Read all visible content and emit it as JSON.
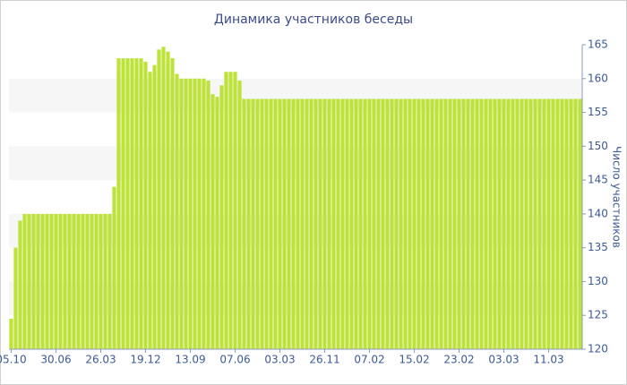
{
  "chart_data": {
    "type": "bar",
    "title": "Динамика участников беседы",
    "y_axis_label": "Число участников",
    "categories": [
      "05.10",
      null,
      null,
      null,
      null,
      null,
      null,
      null,
      null,
      null,
      "30.06",
      null,
      null,
      null,
      null,
      null,
      null,
      null,
      null,
      null,
      "26.03",
      null,
      null,
      null,
      null,
      null,
      null,
      null,
      null,
      null,
      "19.12",
      null,
      null,
      null,
      null,
      null,
      null,
      null,
      null,
      null,
      "13.09",
      null,
      null,
      null,
      null,
      null,
      null,
      null,
      null,
      null,
      "07.06",
      null,
      null,
      null,
      null,
      null,
      null,
      null,
      null,
      null,
      "03.03",
      null,
      null,
      null,
      null,
      null,
      null,
      null,
      null,
      null,
      "26.11",
      null,
      null,
      null,
      null,
      null,
      null,
      null,
      null,
      null,
      "07.02",
      null,
      null,
      null,
      null,
      null,
      null,
      null,
      null,
      null,
      "15.02",
      null,
      null,
      null,
      null,
      null,
      null,
      null,
      null,
      null,
      "23.02",
      null,
      null,
      null,
      null,
      null,
      null,
      null,
      null,
      null,
      "03.03",
      null,
      null,
      null,
      null,
      null,
      null,
      null,
      null,
      null,
      "11.03",
      null,
      null,
      null,
      null,
      null,
      null,
      null
    ],
    "values": [
      124.5,
      135,
      139,
      140,
      140,
      140,
      140,
      140,
      140,
      140,
      140,
      140,
      140,
      140,
      140,
      140,
      140,
      140,
      140,
      140,
      140,
      140,
      140,
      144,
      163,
      163,
      163,
      163,
      163,
      163,
      162.5,
      161,
      162,
      164.3,
      164.7,
      164,
      163,
      160.7,
      160,
      160,
      160,
      160,
      160,
      160,
      159.7,
      157.7,
      157.3,
      159,
      161,
      161,
      161,
      159.7,
      157,
      157,
      157,
      157,
      157,
      157,
      157,
      157,
      157,
      157,
      157,
      157,
      157,
      157,
      157,
      157,
      157,
      157,
      157,
      157,
      157,
      157,
      157,
      157,
      157,
      157,
      157,
      157,
      157,
      157,
      157,
      157,
      157,
      157,
      157,
      157,
      157,
      157,
      157,
      157,
      157,
      157,
      157,
      157,
      157,
      157,
      157,
      157,
      157,
      157,
      157,
      157,
      157,
      157,
      157,
      157,
      157,
      157,
      157,
      157,
      157,
      157,
      157,
      157,
      157,
      157,
      157,
      157,
      157,
      157,
      157,
      157,
      157,
      157,
      157,
      157
    ],
    "color": "#bde23a",
    "ylim": [
      120,
      165
    ],
    "yticks": [
      120,
      125,
      130,
      135,
      140,
      145,
      150,
      155,
      160,
      165
    ],
    "y_axis_side": "right",
    "grid": true
  }
}
